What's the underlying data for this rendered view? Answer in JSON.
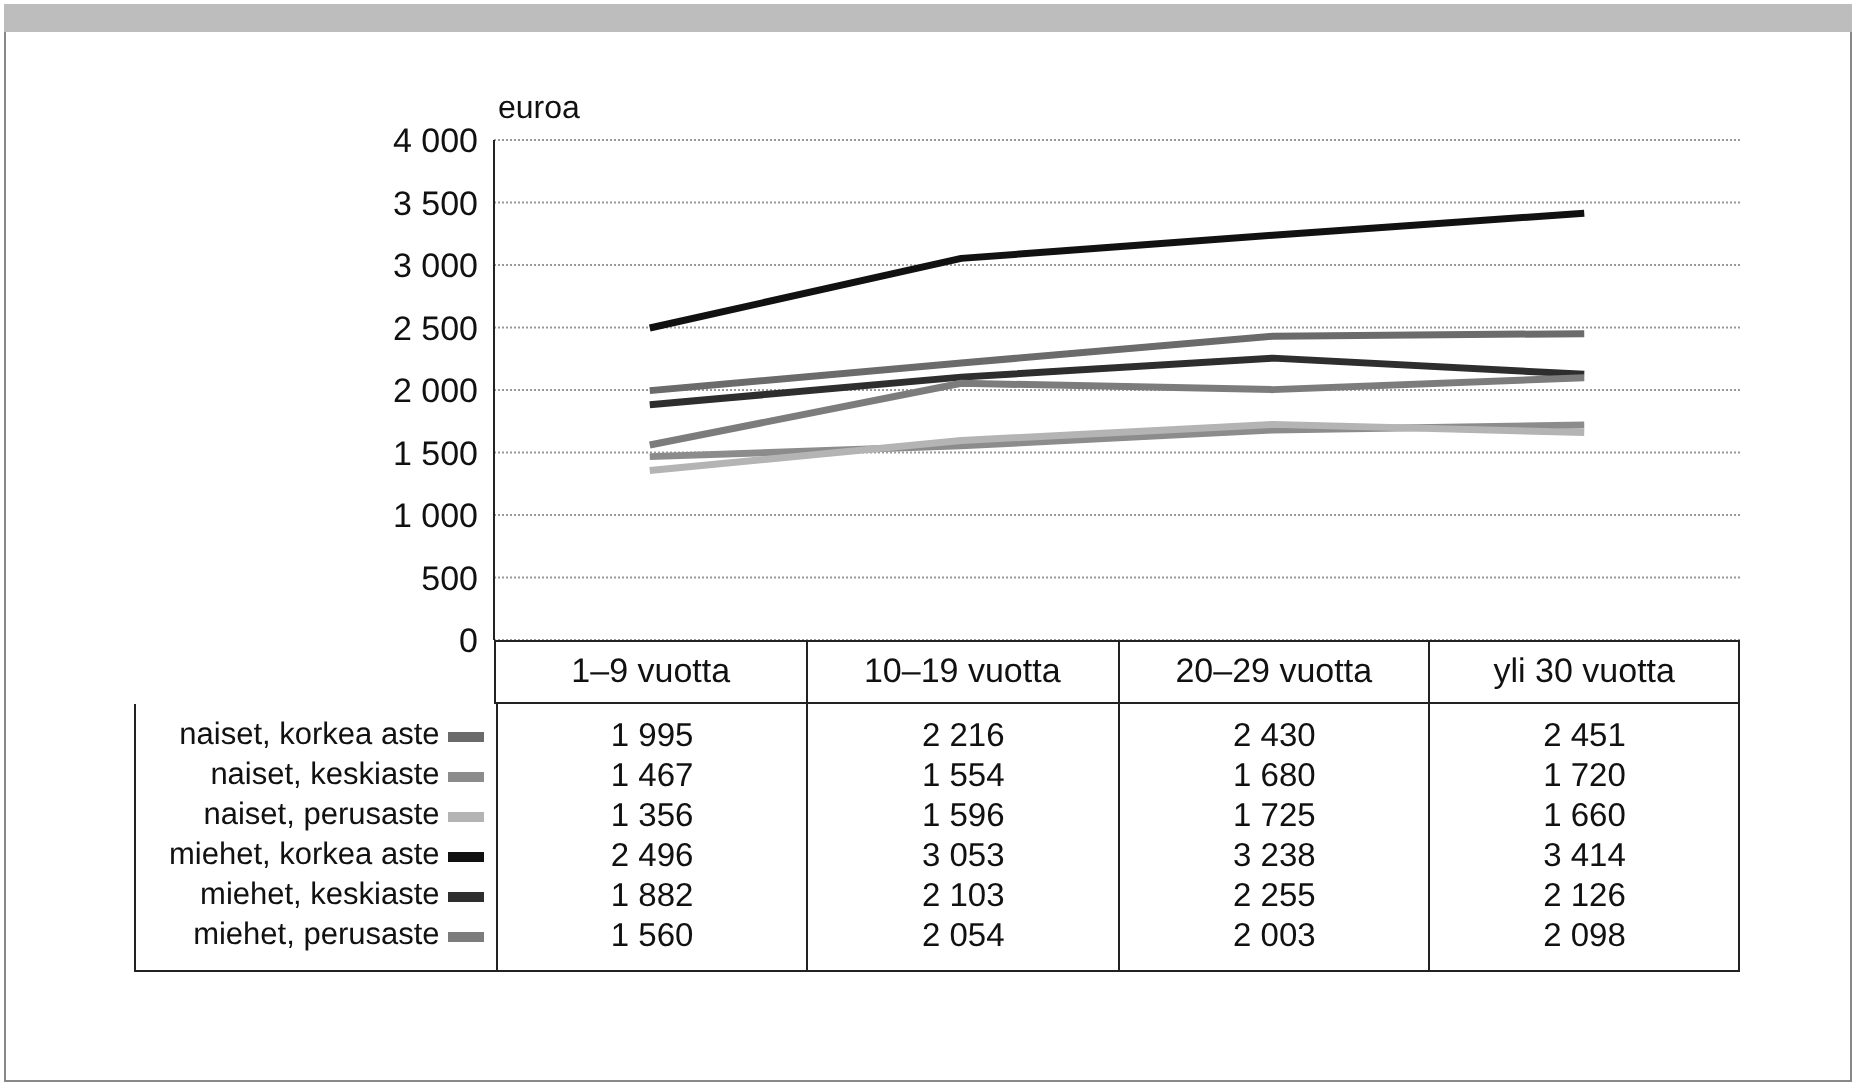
{
  "chart_data": {
    "type": "line",
    "ylabel": "euroa",
    "categories": [
      "1–9 vuotta",
      "10–19 vuotta",
      "20–29 vuotta",
      "yli 30 vuotta"
    ],
    "series": [
      {
        "name": "naiset, korkea aste",
        "color": "#6b6b6b",
        "values": [
          1995,
          2216,
          2430,
          2451
        ]
      },
      {
        "name": "naiset, keskiaste",
        "color": "#8c8c8c",
        "values": [
          1467,
          1554,
          1680,
          1720
        ]
      },
      {
        "name": "naiset, perusaste",
        "color": "#b4b4b4",
        "values": [
          1356,
          1596,
          1725,
          1660
        ]
      },
      {
        "name": "miehet, korkea aste",
        "color": "#111111",
        "values": [
          2496,
          3053,
          3238,
          3414
        ]
      },
      {
        "name": "miehet, keskiaste",
        "color": "#2e2e2e",
        "values": [
          1882,
          2103,
          2255,
          2126
        ]
      },
      {
        "name": "miehet, perusaste",
        "color": "#7c7c7c",
        "values": [
          1560,
          2054,
          2003,
          2098
        ]
      }
    ],
    "ylim": [
      0,
      4000
    ],
    "yticks": [
      0,
      500,
      1000,
      1500,
      2000,
      2500,
      3000,
      3500,
      4000
    ],
    "grid": "y",
    "legend": "bottom",
    "data_labels": true,
    "marker": "none",
    "line_style": "solid"
  }
}
